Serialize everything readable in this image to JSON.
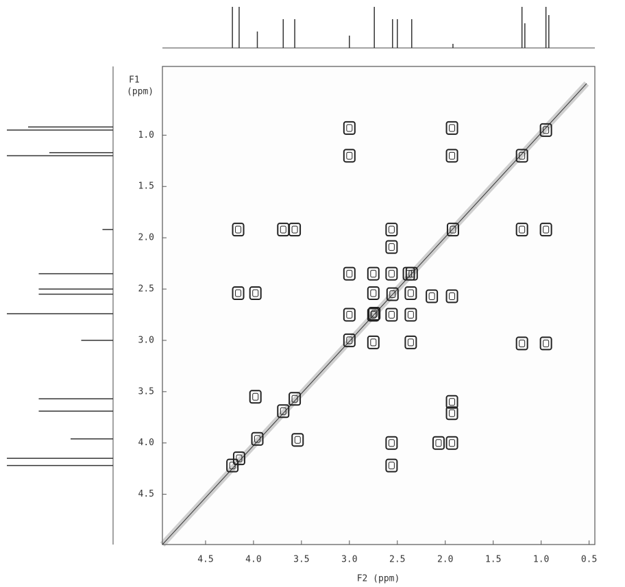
{
  "chart_data": {
    "type": "contour",
    "xlabel": "F2 (ppm)",
    "ylabel": "F1",
    "ylabel_unit": "(ppm)",
    "xlim": [
      4.95,
      0.44
    ],
    "ylim": [
      0.33,
      4.99
    ],
    "xticks": [
      4.5,
      {
        "value": 4,
        "label": "4.0"
      },
      3.5,
      {
        "value": 3,
        "label": "3.0"
      },
      2.5,
      {
        "value": 2,
        "label": "2.0"
      },
      1.5,
      {
        "value": 1,
        "label": "1.0"
      },
      0.5
    ],
    "yticks": [
      {
        "value": 1,
        "label": "1.0"
      },
      1.5,
      {
        "value": 2,
        "label": "2.0"
      },
      2.5,
      {
        "value": 3,
        "label": "3.0"
      },
      3.5,
      {
        "value": 4,
        "label": "4.0"
      },
      4.5
    ],
    "color": "#222222",
    "peaks": {
      "x": [
        3.0,
        3.0,
        1.93,
        1.93,
        4.16,
        3.69,
        3.57,
        2.56,
        2.56,
        1.2,
        0.95,
        3.0,
        2.75,
        2.56,
        2.38,
        4.16,
        3.98,
        2.75,
        2.36,
        2.14,
        1.93,
        3.0,
        2.75,
        2.56,
        2.36,
        2.75,
        2.36,
        1.2,
        0.95,
        1.93,
        1.93,
        3.98,
        3.54,
        2.56,
        2.07,
        1.93,
        2.56,
        4.22,
        4.15,
        3.96,
        3.69,
        3.57,
        3.0,
        2.74,
        2.55,
        2.35,
        1.92,
        1.2,
        0.95
      ],
      "y": [
        0.93,
        1.2,
        0.93,
        1.2,
        1.92,
        1.92,
        1.92,
        1.92,
        2.09,
        1.92,
        1.92,
        2.35,
        2.35,
        2.35,
        2.35,
        2.54,
        2.54,
        2.54,
        2.54,
        2.57,
        2.57,
        2.75,
        2.75,
        2.75,
        2.75,
        3.02,
        3.02,
        3.03,
        3.03,
        3.6,
        3.71,
        3.55,
        3.97,
        4.0,
        4.0,
        4.0,
        4.22,
        4.22,
        4.15,
        3.96,
        3.69,
        3.57,
        3.0,
        2.74,
        2.55,
        2.35,
        1.92,
        1.2,
        0.95
      ]
    },
    "projection": {
      "ppm": [
        4.22,
        4.15,
        3.96,
        3.69,
        3.57,
        3.0,
        2.74,
        2.55,
        2.5,
        2.35,
        1.92,
        1.2,
        1.17,
        0.95,
        0.92
      ],
      "intensity": [
        1,
        1,
        0.4,
        0.7,
        0.7,
        0.3,
        1,
        0.7,
        0.7,
        0.7,
        0.1,
        1,
        0.6,
        1,
        0.8
      ]
    }
  }
}
